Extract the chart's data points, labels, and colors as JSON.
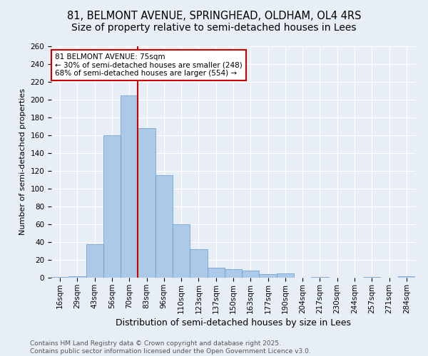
{
  "title": "81, BELMONT AVENUE, SPRINGHEAD, OLDHAM, OL4 4RS",
  "subtitle": "Size of property relative to semi-detached houses in Lees",
  "xlabel": "Distribution of semi-detached houses by size in Lees",
  "ylabel": "Number of semi-detached properties",
  "categories": [
    "16sqm",
    "29sqm",
    "43sqm",
    "56sqm",
    "70sqm",
    "83sqm",
    "96sqm",
    "110sqm",
    "123sqm",
    "137sqm",
    "150sqm",
    "163sqm",
    "177sqm",
    "190sqm",
    "204sqm",
    "217sqm",
    "230sqm",
    "244sqm",
    "257sqm",
    "271sqm",
    "284sqm"
  ],
  "values": [
    1,
    2,
    38,
    160,
    205,
    168,
    115,
    60,
    32,
    11,
    10,
    8,
    4,
    5,
    0,
    1,
    0,
    0,
    1,
    0,
    2
  ],
  "bar_color": "#adc9e8",
  "bar_edgecolor": "#6699cc",
  "vline_color": "#cc0000",
  "vline_x": 4.5,
  "annotation_text": "81 BELMONT AVENUE: 75sqm\n← 30% of semi-detached houses are smaller (248)\n68% of semi-detached houses are larger (554) →",
  "annotation_box_edgecolor": "#cc0000",
  "annotation_box_facecolor": "#ffffff",
  "ylim": [
    0,
    260
  ],
  "yticks": [
    0,
    20,
    40,
    60,
    80,
    100,
    120,
    140,
    160,
    180,
    200,
    220,
    240,
    260
  ],
  "background_color": "#e8eef5",
  "grid_color": "#ffffff",
  "footer_text": "Contains HM Land Registry data © Crown copyright and database right 2025.\nContains public sector information licensed under the Open Government Licence v3.0.",
  "title_fontsize": 10.5,
  "xlabel_fontsize": 9,
  "ylabel_fontsize": 8,
  "tick_fontsize": 7.5,
  "annotation_fontsize": 7.5,
  "footer_fontsize": 6.5
}
